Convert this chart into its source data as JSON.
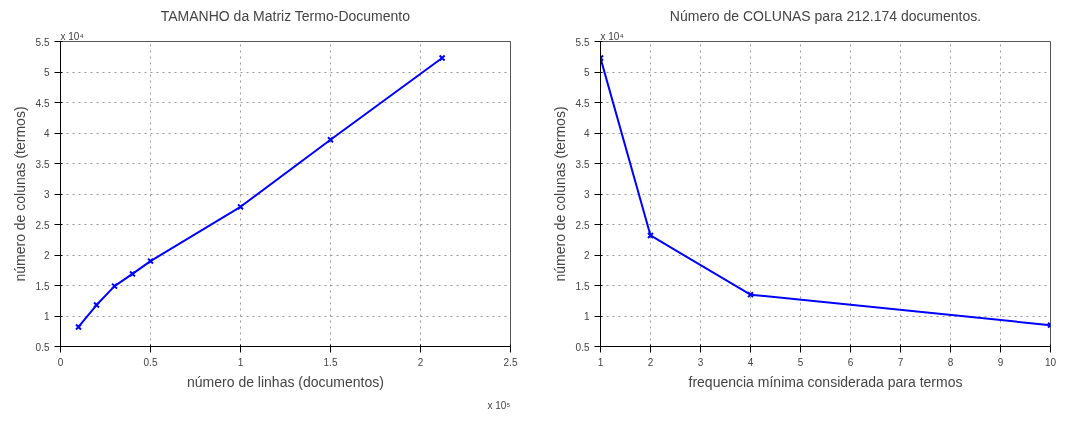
{
  "chart_data": [
    {
      "type": "line",
      "title": "TAMANHO da Matriz Termo-Documento",
      "xlabel": "número de linhas (documentos)",
      "ylabel": "número de colunas (termos)",
      "x": [
        0.1,
        0.2,
        0.3,
        0.4,
        0.5,
        1.0,
        1.5,
        2.12
      ],
      "series": [
        {
          "color": "#0000ff",
          "values": [
            0.82,
            1.18,
            1.49,
            1.69,
            1.9,
            2.79,
            3.89,
            5.23
          ]
        }
      ],
      "xlim": [
        0,
        2.5
      ],
      "xticks": [
        0,
        0.5,
        1,
        1.5,
        2,
        2.5
      ],
      "ylim": [
        0.5,
        5.5
      ],
      "yticks": [
        0.5,
        1,
        1.5,
        2,
        2.5,
        3,
        3.5,
        4,
        4.5,
        5,
        5.5
      ],
      "annotations": [
        "x 10⁴",
        "x 10⁵"
      ],
      "grid": true,
      "marker": "cross",
      "line_style": "solid"
    },
    {
      "type": "line",
      "title": "Número de COLUNAS para 212.174 documentos.",
      "xlabel": "frequencia mínima considerada para termos",
      "ylabel": "número de colunas (termos)",
      "x": [
        1,
        2,
        4,
        10
      ],
      "series": [
        {
          "color": "#0000ff",
          "values": [
            5.23,
            2.32,
            1.35,
            0.85
          ]
        }
      ],
      "xlim": [
        1,
        10
      ],
      "xticks": [
        1,
        2,
        3,
        4,
        5,
        6,
        7,
        8,
        9,
        10
      ],
      "ylim": [
        0.5,
        5.5
      ],
      "yticks": [
        0.5,
        1,
        1.5,
        2,
        2.5,
        3,
        3.5,
        4,
        4.5,
        5,
        5.5
      ],
      "annotations": [
        "x 10⁴"
      ],
      "grid": true,
      "marker": "cross",
      "line_style": "solid"
    }
  ]
}
